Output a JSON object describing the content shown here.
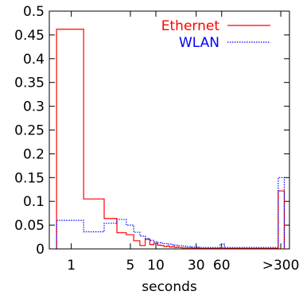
{
  "chart_data": {
    "type": "line",
    "title": "",
    "xlabel": "seconds",
    "ylabel": "",
    "ylim": [
      0,
      0.5
    ],
    "y_ticks": [
      0,
      0.05,
      0.1,
      0.15,
      0.2,
      0.25,
      0.3,
      0.35,
      0.4,
      0.45,
      0.5
    ],
    "y_tick_labels": [
      "0",
      "0.05",
      "0.1",
      "0.15",
      "0.2",
      "0.25",
      "0.3",
      "0.35",
      "0.4",
      "0.45",
      "0.5"
    ],
    "x_tick_labels": [
      "1",
      "5",
      "10",
      "30",
      "60",
      ">300"
    ],
    "x_scale": "log",
    "grid": false,
    "legend_position": "top-right",
    "x": [
      1,
      2,
      3,
      4,
      5,
      6,
      7,
      8,
      9,
      10,
      11,
      12,
      13,
      14,
      15,
      16,
      17,
      18,
      19,
      20,
      21,
      22,
      23,
      24,
      25,
      26,
      27,
      28,
      29,
      30,
      35,
      40,
      45,
      50,
      55,
      60,
      70,
      80,
      90,
      100,
      125,
      150,
      175,
      200,
      250,
      300,
      301
    ],
    "series": [
      {
        "name": "Ethernet",
        "color": "#ff0000",
        "line_style": "solid",
        "values": [
          0.462,
          0.105,
          0.064,
          0.034,
          0.03,
          0.017,
          0.007,
          0.02,
          0.009,
          0.012,
          0.008,
          0.007,
          0.005,
          0.006,
          0.004,
          0.005,
          0.003,
          0.004,
          0.003,
          0.003,
          0.002,
          0.002,
          0.002,
          0.002,
          0.002,
          0.002,
          0.002,
          0.001,
          0.001,
          0.002,
          0.001,
          0.001,
          0.001,
          0.001,
          0.001,
          0.002,
          0.001,
          0.001,
          0.001,
          0.001,
          0.001,
          0.001,
          0.001,
          0.001,
          0.001,
          0.001,
          0.122
        ]
      },
      {
        "name": "WLAN",
        "color": "#0000ff",
        "line_style": "dotted",
        "values": [
          0.06,
          0.036,
          0.054,
          0.062,
          0.05,
          0.035,
          0.027,
          0.022,
          0.018,
          0.015,
          0.013,
          0.012,
          0.011,
          0.01,
          0.01,
          0.009,
          0.008,
          0.008,
          0.007,
          0.007,
          0.006,
          0.006,
          0.005,
          0.005,
          0.005,
          0.005,
          0.004,
          0.004,
          0.004,
          0.004,
          0.003,
          0.003,
          0.003,
          0.003,
          0.003,
          0.01,
          0.003,
          0.003,
          0.003,
          0.003,
          0.003,
          0.003,
          0.003,
          0.003,
          0.003,
          0.003,
          0.15
        ]
      }
    ]
  }
}
